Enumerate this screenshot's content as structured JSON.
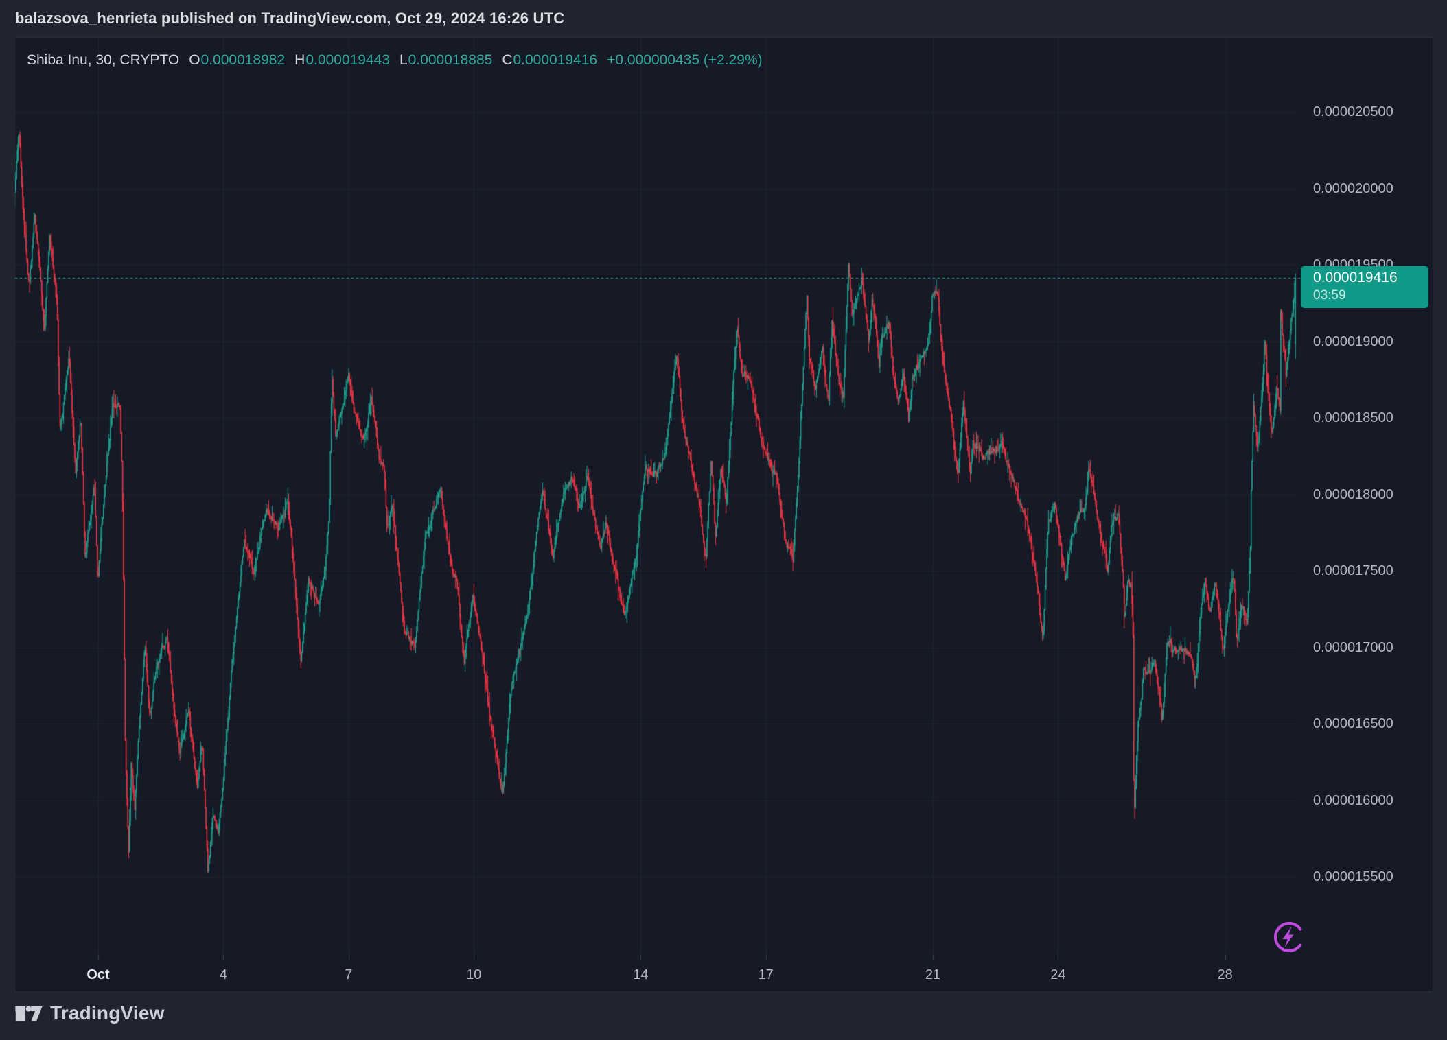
{
  "attribution": "balazsova_henrieta published on TradingView.com, Oct 29, 2024 16:26 UTC",
  "legend": {
    "symbol": "Shiba Inu, 30, CRYPTO",
    "o_label": "O",
    "o": "0.000018982",
    "h_label": "H",
    "h": "0.000019443",
    "l_label": "L",
    "l": "0.000018885",
    "c_label": "C",
    "c": "0.000019416",
    "change": "+0.000000435 (+2.29%)"
  },
  "price_label": {
    "price": "0.000019416",
    "countdown": "03:59"
  },
  "logo": {
    "text": "TradingView"
  },
  "colors": {
    "outer_bg": "#20242f",
    "pane_bg": "#151a26",
    "pane_border": "#272c3a",
    "grid": "#1f2433",
    "axis_tick": "#3a4052",
    "axis_text": "#b2b6c1",
    "bright_text": "#dcdee4",
    "up": "#21a391",
    "down": "#f23645",
    "accent": "#2fa99a",
    "badge_bg": "#109a87",
    "flash_purple": "#bc4bdc"
  },
  "chart_data": {
    "type": "candlestick",
    "title": "Shiba Inu, 30, CRYPTO",
    "symbol": "Shiba Inu",
    "interval_minutes": 30,
    "exchange": "CRYPTO",
    "last_bar": {
      "open": 1.8982e-05,
      "high": 1.9443e-05,
      "low": 1.8885e-05,
      "close": 1.9416e-05,
      "change": "+0.000000435",
      "change_pct": "+2.29%"
    },
    "current_price": 1.9416e-05,
    "countdown": "03:59",
    "y_axis": {
      "ticks": [
        "0.000020500",
        "0.000020000",
        "0.000019500",
        "0.000019000",
        "0.000018500",
        "0.000018000",
        "0.000017500",
        "0.000017000",
        "0.000016500",
        "0.000016000",
        "0.000015500"
      ],
      "visible_range": [
        1.5e-05,
        2.1e-05
      ],
      "grid": true,
      "side": "right"
    },
    "x_axis": {
      "ticks": [
        {
          "label": "Oct",
          "day": 0,
          "bold": true
        },
        {
          "label": "4",
          "day": 3
        },
        {
          "label": "7",
          "day": 6
        },
        {
          "label": "10",
          "day": 9
        },
        {
          "label": "14",
          "day": 13
        },
        {
          "label": "17",
          "day": 16
        },
        {
          "label": "21",
          "day": 20
        },
        {
          "label": "24",
          "day": 23
        },
        {
          "label": "28",
          "day": 27
        }
      ],
      "start_day": -2.05,
      "end_day": 28.69,
      "note": "day = days since Oct 1 2024 00:00 UTC; data spans Sep 29 - Oct 29 16:26 UTC"
    },
    "price_path_t_days_price_1e9": [
      [
        -2.07,
        19650
      ],
      [
        -1.89,
        20390
      ],
      [
        -1.77,
        19800
      ],
      [
        -1.64,
        19340
      ],
      [
        -1.51,
        19840
      ],
      [
        -1.4,
        19520
      ],
      [
        -1.28,
        19054
      ],
      [
        -1.15,
        19700
      ],
      [
        -1.07,
        19480
      ],
      [
        -0.98,
        19270
      ],
      [
        -0.9,
        18410
      ],
      [
        -0.69,
        18880
      ],
      [
        -0.53,
        18160
      ],
      [
        -0.41,
        18500
      ],
      [
        -0.3,
        17590
      ],
      [
        -0.08,
        18050
      ],
      [
        0.0,
        17450
      ],
      [
        0.16,
        18000
      ],
      [
        0.36,
        18600
      ],
      [
        0.53,
        18580
      ],
      [
        0.59,
        18100
      ],
      [
        0.66,
        16375
      ],
      [
        0.74,
        15640
      ],
      [
        0.8,
        16230
      ],
      [
        0.89,
        15950
      ],
      [
        1.0,
        16500
      ],
      [
        1.13,
        17020
      ],
      [
        1.25,
        16550
      ],
      [
        1.41,
        16900
      ],
      [
        1.67,
        17050
      ],
      [
        1.79,
        16700
      ],
      [
        1.97,
        16300
      ],
      [
        2.18,
        16600
      ],
      [
        2.38,
        16090
      ],
      [
        2.51,
        16350
      ],
      [
        2.64,
        15520
      ],
      [
        2.76,
        15900
      ],
      [
        2.89,
        15800
      ],
      [
        3.02,
        16160
      ],
      [
        3.22,
        16900
      ],
      [
        3.51,
        17700
      ],
      [
        3.74,
        17500
      ],
      [
        4.04,
        17910
      ],
      [
        4.32,
        17780
      ],
      [
        4.56,
        17950
      ],
      [
        4.73,
        17400
      ],
      [
        4.86,
        16910
      ],
      [
        5.05,
        17465
      ],
      [
        5.3,
        17280
      ],
      [
        5.45,
        17500
      ],
      [
        5.55,
        17900
      ],
      [
        5.61,
        18790
      ],
      [
        5.71,
        18350
      ],
      [
        6.01,
        18790
      ],
      [
        6.14,
        18550
      ],
      [
        6.37,
        18340
      ],
      [
        6.56,
        18630
      ],
      [
        6.74,
        18250
      ],
      [
        6.86,
        18160
      ],
      [
        6.93,
        17770
      ],
      [
        7.06,
        17950
      ],
      [
        7.35,
        17100
      ],
      [
        7.6,
        17000
      ],
      [
        7.84,
        17700
      ],
      [
        8.21,
        18050
      ],
      [
        8.45,
        17550
      ],
      [
        8.6,
        17450
      ],
      [
        8.78,
        16900
      ],
      [
        8.99,
        17350
      ],
      [
        9.17,
        17050
      ],
      [
        9.39,
        16550
      ],
      [
        9.71,
        16050
      ],
      [
        9.9,
        16730
      ],
      [
        10.11,
        16980
      ],
      [
        10.31,
        17230
      ],
      [
        10.65,
        18050
      ],
      [
        10.9,
        17590
      ],
      [
        11.16,
        18000
      ],
      [
        11.39,
        18110
      ],
      [
        11.55,
        17900
      ],
      [
        11.72,
        18110
      ],
      [
        12.05,
        17630
      ],
      [
        12.19,
        17820
      ],
      [
        12.39,
        17500
      ],
      [
        12.62,
        17200
      ],
      [
        12.9,
        17590
      ],
      [
        13.1,
        18160
      ],
      [
        13.39,
        18130
      ],
      [
        13.59,
        18270
      ],
      [
        13.88,
        18950
      ],
      [
        14.0,
        18500
      ],
      [
        14.41,
        17950
      ],
      [
        14.57,
        17590
      ],
      [
        14.7,
        18230
      ],
      [
        14.8,
        17730
      ],
      [
        14.93,
        18150
      ],
      [
        15.06,
        17950
      ],
      [
        15.31,
        19100
      ],
      [
        15.43,
        18800
      ],
      [
        15.64,
        18750
      ],
      [
        15.95,
        18300
      ],
      [
        16.28,
        18100
      ],
      [
        16.48,
        17700
      ],
      [
        16.66,
        17580
      ],
      [
        16.77,
        18050
      ],
      [
        16.99,
        19290
      ],
      [
        17.05,
        18880
      ],
      [
        17.2,
        18700
      ],
      [
        17.36,
        18950
      ],
      [
        17.51,
        18590
      ],
      [
        17.59,
        19140
      ],
      [
        17.76,
        18730
      ],
      [
        17.87,
        18630
      ],
      [
        17.99,
        19520
      ],
      [
        18.08,
        19160
      ],
      [
        18.2,
        19300
      ],
      [
        18.31,
        19400
      ],
      [
        18.48,
        18980
      ],
      [
        18.56,
        19270
      ],
      [
        18.64,
        19090
      ],
      [
        18.72,
        18840
      ],
      [
        18.77,
        19020
      ],
      [
        18.97,
        19110
      ],
      [
        19.07,
        18770
      ],
      [
        19.18,
        18590
      ],
      [
        19.31,
        18800
      ],
      [
        19.43,
        18480
      ],
      [
        19.51,
        18770
      ],
      [
        19.74,
        18890
      ],
      [
        19.91,
        19020
      ],
      [
        19.99,
        19290
      ],
      [
        20.12,
        19320
      ],
      [
        20.28,
        18800
      ],
      [
        20.48,
        18450
      ],
      [
        20.61,
        18130
      ],
      [
        20.74,
        18590
      ],
      [
        20.91,
        18130
      ],
      [
        20.97,
        18340
      ],
      [
        21.22,
        18250
      ],
      [
        21.66,
        18320
      ],
      [
        21.88,
        18150
      ],
      [
        22.09,
        17950
      ],
      [
        22.27,
        17800
      ],
      [
        22.45,
        17540
      ],
      [
        22.65,
        17050
      ],
      [
        22.73,
        17590
      ],
      [
        22.78,
        17800
      ],
      [
        22.94,
        17930
      ],
      [
        23.19,
        17430
      ],
      [
        23.34,
        17730
      ],
      [
        23.47,
        17840
      ],
      [
        23.67,
        17950
      ],
      [
        23.75,
        18160
      ],
      [
        23.86,
        18040
      ],
      [
        24.0,
        17770
      ],
      [
        24.21,
        17500
      ],
      [
        24.29,
        17820
      ],
      [
        24.45,
        17860
      ],
      [
        24.57,
        17450
      ],
      [
        24.6,
        17140
      ],
      [
        24.68,
        17430
      ],
      [
        24.77,
        17410
      ],
      [
        24.81,
        17050
      ],
      [
        24.83,
        15860
      ],
      [
        24.9,
        16340
      ],
      [
        24.93,
        16520
      ],
      [
        25.01,
        16660
      ],
      [
        25.06,
        16880
      ],
      [
        25.14,
        16820
      ],
      [
        25.32,
        16900
      ],
      [
        25.47,
        16630
      ],
      [
        25.5,
        16500
      ],
      [
        25.62,
        17020
      ],
      [
        25.7,
        17050
      ],
      [
        25.75,
        16980
      ],
      [
        26.03,
        17000
      ],
      [
        26.21,
        16910
      ],
      [
        26.29,
        16790
      ],
      [
        26.36,
        16950
      ],
      [
        26.41,
        17200
      ],
      [
        26.54,
        17450
      ],
      [
        26.65,
        17200
      ],
      [
        26.78,
        17450
      ],
      [
        26.96,
        16980
      ],
      [
        27.06,
        17200
      ],
      [
        27.18,
        17450
      ],
      [
        27.23,
        17460
      ],
      [
        27.29,
        17020
      ],
      [
        27.41,
        17300
      ],
      [
        27.54,
        17140
      ],
      [
        27.62,
        17680
      ],
      [
        27.64,
        18070
      ],
      [
        27.7,
        18600
      ],
      [
        27.79,
        18300
      ],
      [
        27.87,
        18590
      ],
      [
        27.92,
        18750
      ],
      [
        27.97,
        19010
      ],
      [
        28.03,
        18730
      ],
      [
        28.08,
        18550
      ],
      [
        28.13,
        18410
      ],
      [
        28.2,
        18540
      ],
      [
        28.25,
        18730
      ],
      [
        28.33,
        18550
      ],
      [
        28.34,
        19240
      ],
      [
        28.41,
        18980
      ],
      [
        28.44,
        18910
      ],
      [
        28.47,
        18750
      ],
      [
        28.52,
        18910
      ],
      [
        28.59,
        19125
      ],
      [
        28.65,
        19200
      ],
      [
        28.69,
        19416
      ]
    ],
    "price_scale": 1e-09,
    "extremes": {
      "high": 2.04e-05,
      "low": 1.55e-05
    },
    "legend_position": "top-left",
    "grid": true
  }
}
